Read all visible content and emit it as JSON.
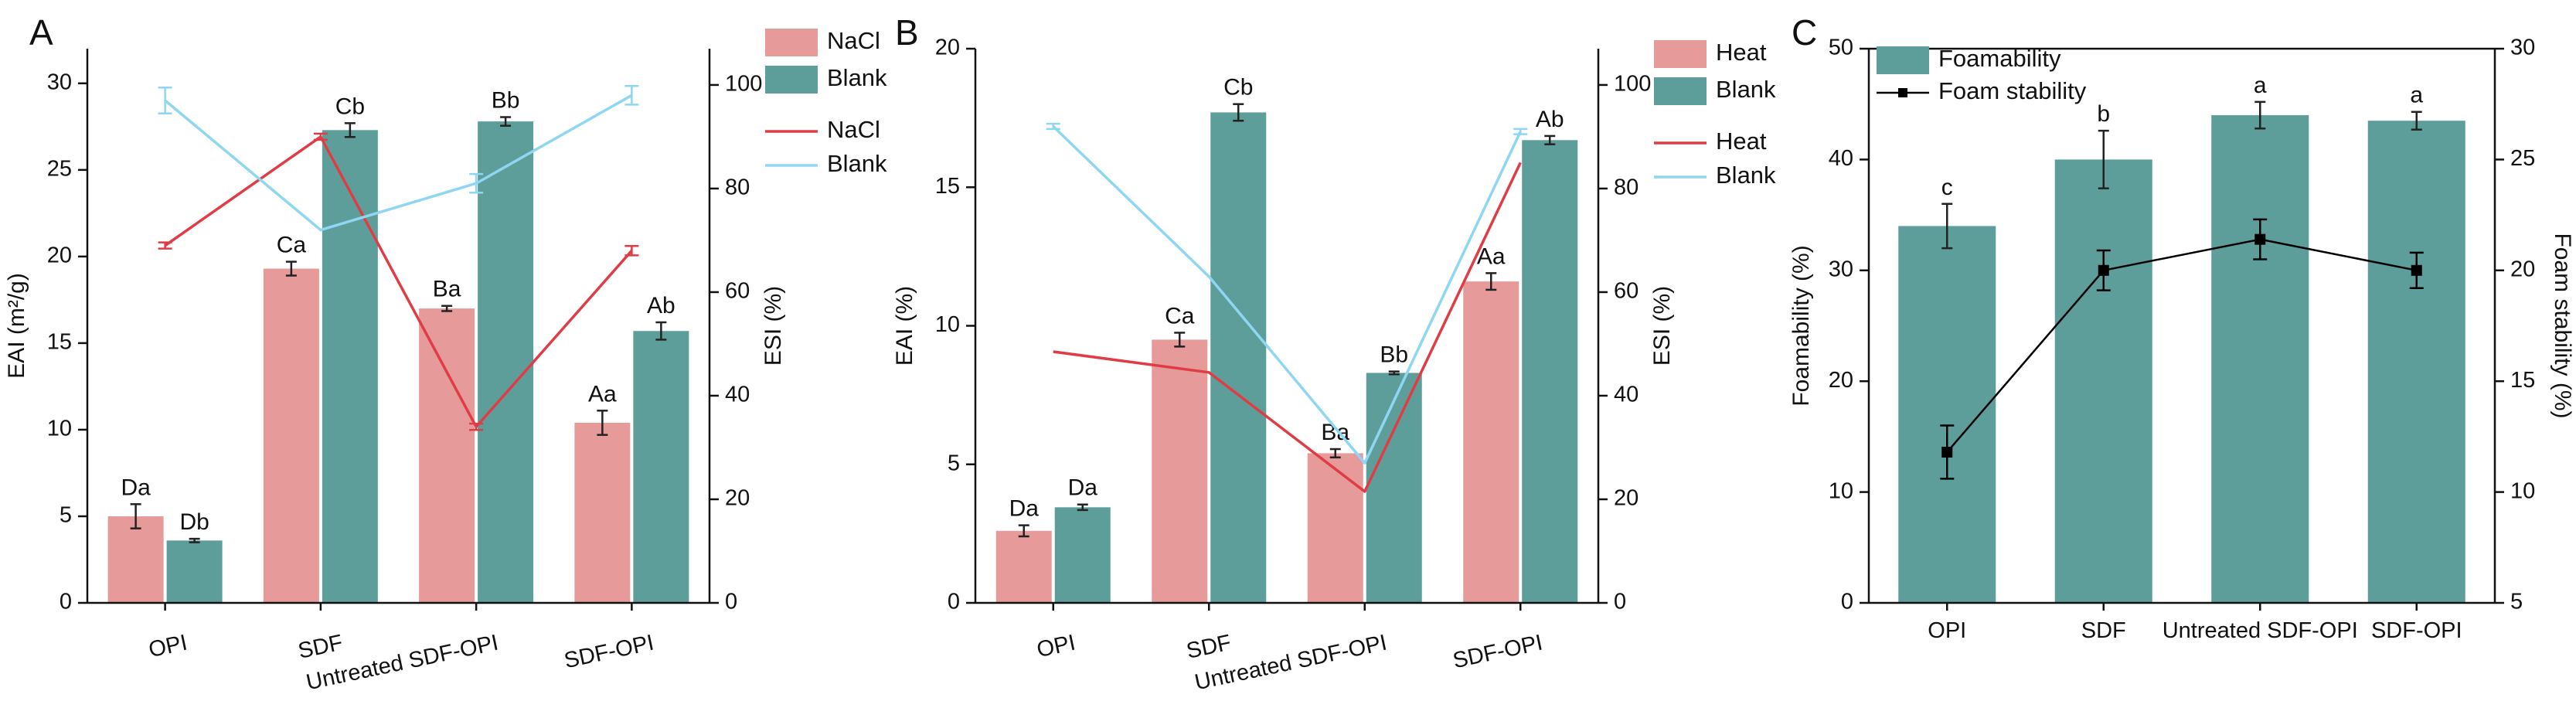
{
  "colors": {
    "nacl_bar": "#E79A9A",
    "blank_bar": "#5E9E9A",
    "red_line": "#E03C46",
    "blue_line": "#8FD6F2",
    "axis": "#111111",
    "marker": "#000000"
  },
  "chart_data": [
    {
      "panel": "A",
      "type": "bar+line",
      "categories": [
        "OPI",
        "SDF",
        "Untreated SDF-OPI",
        "SDF-OPI"
      ],
      "ylabel": "EAI (m²/g)",
      "ylim": [
        0,
        32
      ],
      "yticks": [
        "0",
        "5",
        "10",
        "15",
        "20",
        "25",
        "30"
      ],
      "y2label": "ESI (%)",
      "y2lim": [
        0,
        107
      ],
      "y2ticks": [
        "0",
        "20",
        "40",
        "60",
        "80",
        "100"
      ],
      "bar_series": [
        {
          "name": "NaCl",
          "values": [
            5.0,
            19.3,
            17.0,
            10.4
          ],
          "errors": [
            0.7,
            0.4,
            0.15,
            0.7
          ],
          "labels": [
            "Da",
            "Ca",
            "Ba",
            "Aa"
          ]
        },
        {
          "name": "Blank",
          "values": [
            3.6,
            27.3,
            27.8,
            15.7
          ],
          "errors": [
            0.1,
            0.4,
            0.25,
            0.5
          ],
          "labels": [
            "Db",
            "Cb",
            "Bb",
            "Ab"
          ]
        }
      ],
      "line_series": [
        {
          "name": "NaCl",
          "values": [
            69,
            90,
            34,
            68
          ],
          "errors": [
            0.6,
            0.6,
            0.6,
            0.9
          ]
        },
        {
          "name": "Blank",
          "values": [
            97,
            72,
            81,
            98
          ],
          "errors": [
            2.5,
            0,
            1.8,
            1.8
          ]
        }
      ]
    },
    {
      "panel": "B",
      "type": "bar+line",
      "categories": [
        "OPI",
        "SDF",
        "Untreated SDF-OPI",
        "SDF-OPI"
      ],
      "ylabel": "EAI (%)",
      "ylim": [
        0,
        20
      ],
      "yticks": [
        "0",
        "5",
        "10",
        "15",
        "20"
      ],
      "y2label": "ESI (%)",
      "y2lim": [
        0,
        107
      ],
      "y2ticks": [
        "0",
        "20",
        "40",
        "60",
        "80",
        "100"
      ],
      "bar_series": [
        {
          "name": "Heat",
          "values": [
            2.6,
            9.5,
            5.4,
            11.6
          ],
          "errors": [
            0.2,
            0.25,
            0.15,
            0.3
          ],
          "labels": [
            "Da",
            "Ca",
            "Ba",
            "Aa"
          ]
        },
        {
          "name": "Blank",
          "values": [
            3.45,
            17.7,
            8.3,
            16.7
          ],
          "errors": [
            0.1,
            0.3,
            0.05,
            0.15
          ],
          "labels": [
            "Da",
            "Cb",
            "Bb",
            "Ab"
          ]
        }
      ],
      "line_series": [
        {
          "name": "Heat",
          "values": [
            48.5,
            44.5,
            21.5,
            85
          ],
          "errors": [
            0,
            0,
            0,
            0
          ]
        },
        {
          "name": "Blank",
          "values": [
            92,
            63,
            27,
            91
          ],
          "errors": [
            0.5,
            0,
            0,
            0.5
          ]
        }
      ]
    },
    {
      "panel": "C",
      "type": "bar+line",
      "categories": [
        "OPI",
        "SDF",
        "Untreated SDF-OPI",
        "SDF-OPI"
      ],
      "ylabel": "Foamability (%)",
      "ylim": [
        0,
        50
      ],
      "yticks": [
        "0",
        "10",
        "20",
        "30",
        "40",
        "50"
      ],
      "y2label": "Foam stability (%)",
      "y2lim": [
        5,
        30
      ],
      "y2ticks": [
        "5",
        "10",
        "15",
        "20",
        "25",
        "30"
      ],
      "bar_series": [
        {
          "name": "Foamability",
          "values": [
            34.0,
            40.0,
            44.0,
            43.5
          ],
          "errors": [
            2.0,
            2.6,
            1.2,
            0.8
          ],
          "labels": [
            "c",
            "b",
            "a",
            "a"
          ]
        }
      ],
      "line_series": [
        {
          "name": "Foam stability",
          "values": [
            11.8,
            20.0,
            21.4,
            20.0
          ],
          "errors": [
            1.2,
            0.9,
            0.9,
            0.8
          ]
        }
      ]
    }
  ]
}
